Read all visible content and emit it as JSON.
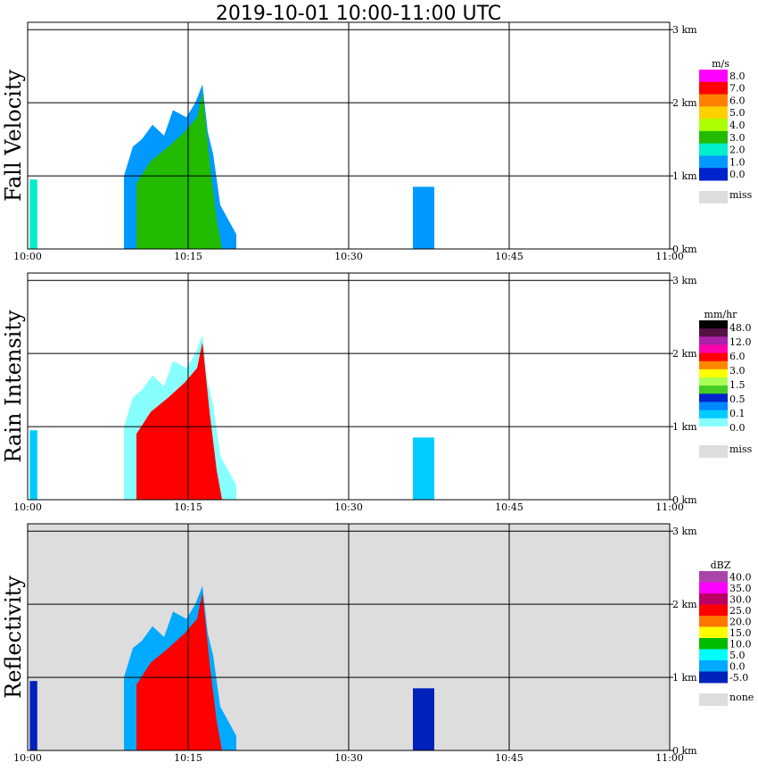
{
  "title": "2019-10-01   10:00-11:00 UTC",
  "chart_data": [
    {
      "type": "heatmap",
      "ylabel": "Fall Velocity",
      "xlim": [
        "10:00",
        "11:00"
      ],
      "x_ticks": [
        "10:00",
        "10:15",
        "10:30",
        "10:45",
        "11:00"
      ],
      "y_ticks": [
        "0 km",
        "1 km",
        "2 km",
        "3 km"
      ],
      "ylim": [
        0,
        3.1
      ],
      "grid": true,
      "legend_position": "right",
      "colorbar": {
        "unit": "m/s",
        "labels": [
          "8.0",
          "7.0",
          "6.0",
          "5.0",
          "4.0",
          "3.0",
          "2.0",
          "1.0",
          "0.0"
        ],
        "colors": [
          "#ff00ff",
          "#ff0000",
          "#ff7f00",
          "#ffd000",
          "#aaff00",
          "#22bb00",
          "#00eecc",
          "#0099ff",
          "#0022cc"
        ],
        "missing_label": "miss",
        "missing_color": "#dddddd"
      },
      "echoes": [
        {
          "start_min": 0.2,
          "end_min": 0.9,
          "top_km": 0.95,
          "value": 2.0
        },
        {
          "start_min": 9.0,
          "end_min": 19.5,
          "top_km": 2.25,
          "value": 3.5
        },
        {
          "start_min": 36.0,
          "end_min": 38.0,
          "top_km": 0.85,
          "value": 1.5
        }
      ]
    },
    {
      "type": "heatmap",
      "ylabel": "Rain Intensity",
      "xlim": [
        "10:00",
        "11:00"
      ],
      "x_ticks": [
        "10:00",
        "10:15",
        "10:30",
        "10:45",
        "11:00"
      ],
      "y_ticks": [
        "0 km",
        "1 km",
        "2 km",
        "3 km"
      ],
      "ylim": [
        0,
        3.1
      ],
      "grid": true,
      "legend_position": "right",
      "colorbar": {
        "unit": "mm/hr",
        "labels": [
          "48.0",
          "12.0",
          "6.0",
          "3.0",
          "1.5",
          "0.5",
          "0.1",
          "0.0"
        ],
        "colors": [
          "#000000",
          "#551144",
          "#aa22aa",
          "#ff00aa",
          "#ff0000",
          "#ff8800",
          "#ffff00",
          "#aaff55",
          "#44cc22",
          "#0022cc",
          "#0088ff",
          "#00ccff",
          "#88ffff",
          "#ffffff"
        ],
        "missing_label": "miss",
        "missing_color": "#dddddd"
      },
      "echoes": [
        {
          "start_min": 0.2,
          "end_min": 0.9,
          "top_km": 0.95,
          "value": 0.1
        },
        {
          "start_min": 9.0,
          "end_min": 19.5,
          "top_km": 2.25,
          "value": 6.0
        },
        {
          "start_min": 36.0,
          "end_min": 38.0,
          "top_km": 0.85,
          "value": 0.1
        }
      ]
    },
    {
      "type": "heatmap",
      "ylabel": "Reflectivity",
      "xlim": [
        "10:00",
        "11:00"
      ],
      "x_ticks": [
        "10:00",
        "10:15",
        "10:30",
        "10:45",
        "11:00"
      ],
      "y_ticks": [
        "0 km",
        "1 km",
        "2 km",
        "3 km"
      ],
      "ylim": [
        0,
        3.1
      ],
      "grid": true,
      "legend_position": "right",
      "colorbar": {
        "unit": "dBZ",
        "labels": [
          "40.0",
          "35.0",
          "30.0",
          "25.0",
          "20.0",
          "15.0",
          "10.0",
          "5.0",
          "0.0",
          "-5.0"
        ],
        "colors": [
          "#aa44aa",
          "#ff00ff",
          "#bb0066",
          "#ff0000",
          "#ff7700",
          "#ffff00",
          "#00bb00",
          "#00ffff",
          "#00aaff",
          "#0022bb"
        ],
        "missing_label": "none",
        "missing_color": "#dddddd"
      },
      "echoes": [
        {
          "start_min": 0.2,
          "end_min": 0.9,
          "top_km": 0.95,
          "value": -5.0
        },
        {
          "start_min": 9.0,
          "end_min": 19.5,
          "top_km": 2.25,
          "value": 25.0
        },
        {
          "start_min": 36.0,
          "end_min": 38.0,
          "top_km": 0.85,
          "value": -5.0
        }
      ]
    }
  ]
}
